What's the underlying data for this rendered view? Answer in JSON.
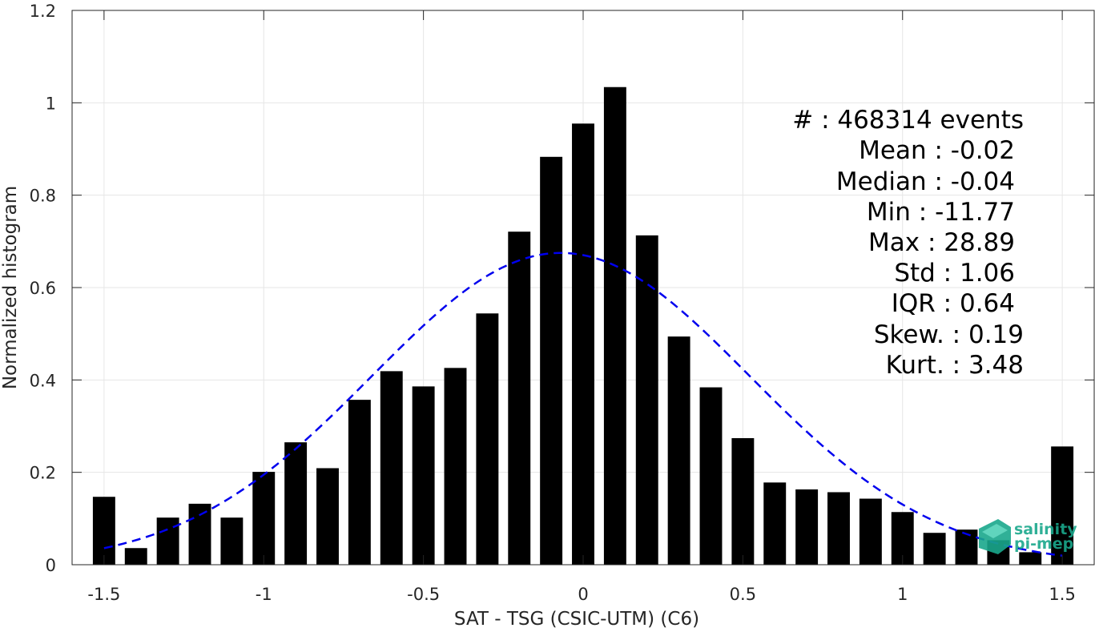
{
  "chart_data": {
    "type": "bar",
    "xlabel": "SAT - TSG (CSIC-UTM) (C6)",
    "ylabel": "Normalized histogram",
    "xlim": [
      -1.6,
      1.6
    ],
    "ylim": [
      0,
      1.2
    ],
    "x_ticks": [
      -1.5,
      -1,
      -0.5,
      0,
      0.5,
      1,
      1.5
    ],
    "x_tick_labels": [
      "-1.5",
      "-1",
      "-0.5",
      "0",
      "0.5",
      "1",
      "1.5"
    ],
    "y_ticks": [
      0,
      0.2,
      0.4,
      0.6,
      0.8,
      1,
      1.2
    ],
    "y_tick_labels": [
      "0",
      "0.2",
      "0.4",
      "0.6",
      "0.8",
      "1",
      "1.2"
    ],
    "grid": true,
    "bar_width": 0.07,
    "bars": {
      "x": [
        -1.5,
        -1.4,
        -1.3,
        -1.2,
        -1.1,
        -1.0,
        -0.9,
        -0.8,
        -0.7,
        -0.6,
        -0.5,
        -0.4,
        -0.3,
        -0.2,
        -0.1,
        0.0,
        0.1,
        0.2,
        0.3,
        0.4,
        0.5,
        0.6,
        0.7,
        0.8,
        0.9,
        1.0,
        1.1,
        1.2,
        1.3,
        1.4,
        1.5
      ],
      "values": [
        0.147,
        0.036,
        0.102,
        0.132,
        0.102,
        0.201,
        0.265,
        0.209,
        0.357,
        0.419,
        0.386,
        0.426,
        0.544,
        0.721,
        0.883,
        0.955,
        1.034,
        0.713,
        0.494,
        0.384,
        0.274,
        0.178,
        0.163,
        0.157,
        0.143,
        0.114,
        0.069,
        0.076,
        0.053,
        0.027,
        0.256
      ],
      "color": "#000000"
    },
    "fit_curve": {
      "type": "gaussian",
      "mean": -0.07,
      "peak": 0.675,
      "std": 0.59,
      "x_range": [
        -1.5,
        1.5
      ],
      "color": "#0000ee",
      "style": "dashed"
    },
    "stats_box": [
      "#  : 468314 events",
      "Mean : -0.02",
      "Median : -0.04",
      "Min : -11.77",
      "Max : 28.89",
      "Std : 1.06",
      "IQR : 0.64",
      "Skew. : 0.19",
      "Kurt. : 3.48"
    ]
  },
  "logo": {
    "line1": "salinity",
    "line2": "pi-mep",
    "color": "#1aa88c"
  }
}
